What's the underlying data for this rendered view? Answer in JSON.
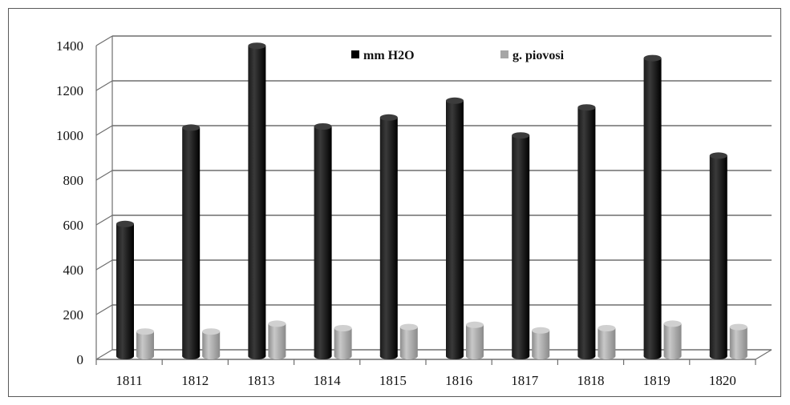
{
  "chart_data": {
    "type": "bar",
    "categories": [
      "1811",
      "1812",
      "1813",
      "1814",
      "1815",
      "1816",
      "1817",
      "1818",
      "1819",
      "1820"
    ],
    "series": [
      {
        "name": "mm H2O",
        "color": "#000000",
        "values": [
          590,
          1020,
          1385,
          1025,
          1065,
          1140,
          985,
          1110,
          1330,
          895
        ]
      },
      {
        "name": "g. piovosi",
        "color": "#a6a6a6",
        "values": [
          110,
          110,
          145,
          125,
          130,
          140,
          115,
          125,
          145,
          130
        ]
      }
    ],
    "y_ticks": [
      "0",
      "200",
      "400",
      "600",
      "800",
      "1000",
      "1200",
      "1400"
    ],
    "ylim": [
      0,
      1400
    ],
    "grid": true,
    "legend_position": "top-center",
    "style": "3d-cylinder"
  }
}
